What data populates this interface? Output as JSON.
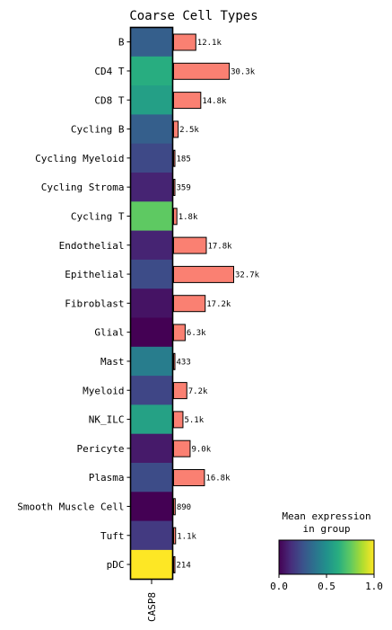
{
  "chart_data": {
    "type": "heatmap",
    "title": "Coarse Cell Types",
    "gene": "CASP8",
    "categories": [
      "B",
      "CD4 T",
      "CD8 T",
      "Cycling B",
      "Cycling Myeloid",
      "Cycling Stroma",
      "Cycling T",
      "Endothelial",
      "Epithelial",
      "Fibroblast",
      "Glial",
      "Mast",
      "Myeloid",
      "NK_ILC",
      "Pericyte",
      "Plasma",
      "Smooth Muscle Cell",
      "Tuft",
      "pDC"
    ],
    "mean_expression": [
      0.3,
      0.62,
      0.56,
      0.3,
      0.22,
      0.1,
      0.75,
      0.1,
      0.23,
      0.05,
      0.0,
      0.42,
      0.21,
      0.57,
      0.07,
      0.23,
      0.0,
      0.17,
      1.0
    ],
    "cell_counts": [
      12100,
      30300,
      14800,
      2500,
      185,
      359,
      1800,
      17800,
      32700,
      17200,
      6300,
      433,
      7200,
      5100,
      9000,
      16800,
      890,
      1100,
      214
    ],
    "count_labels": [
      "12.1k",
      "30.3k",
      "14.8k",
      "2.5k",
      "185",
      "359",
      "1.8k",
      "17.8k",
      "32.7k",
      "17.2k",
      "6.3k",
      "433",
      "7.2k",
      "5.1k",
      "9.0k",
      "16.8k",
      "890",
      "1.1k",
      "214"
    ],
    "bar_color": "#fa8072",
    "colormap": "viridis",
    "colorbar": {
      "title_line1": "Mean expression",
      "title_line2": "in group",
      "ticks": [
        "0.0",
        "0.5",
        "1.0"
      ],
      "range": [
        0,
        1
      ]
    }
  }
}
